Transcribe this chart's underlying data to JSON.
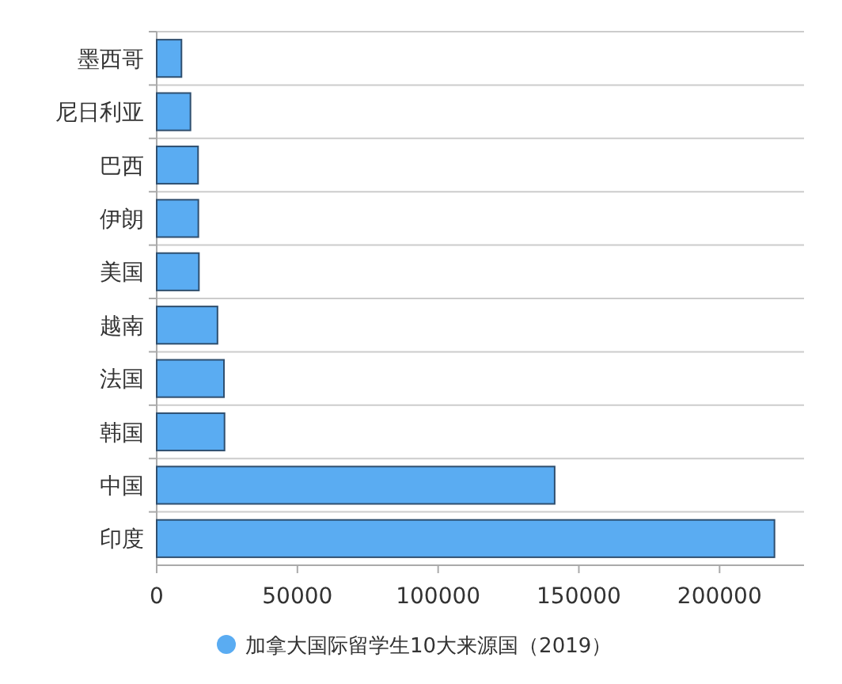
{
  "chart_data": {
    "type": "bar",
    "orientation": "horizontal",
    "categories": [
      "墨西哥",
      "尼日利亚",
      "巴西",
      "伊朗",
      "美国",
      "越南",
      "法国",
      "韩国",
      "中国",
      "印度"
    ],
    "series": [
      {
        "name": "加拿大国际留学生10大来源国（2019）",
        "color": "#5aacf2",
        "values": [
          8800,
          12000,
          14700,
          14800,
          15000,
          21600,
          23900,
          24100,
          141400,
          219500
        ]
      }
    ],
    "xlim": [
      0,
      230000
    ],
    "xticks": [
      0,
      50000,
      100000,
      150000,
      200000
    ],
    "grid": "y",
    "legend": "bottom"
  }
}
